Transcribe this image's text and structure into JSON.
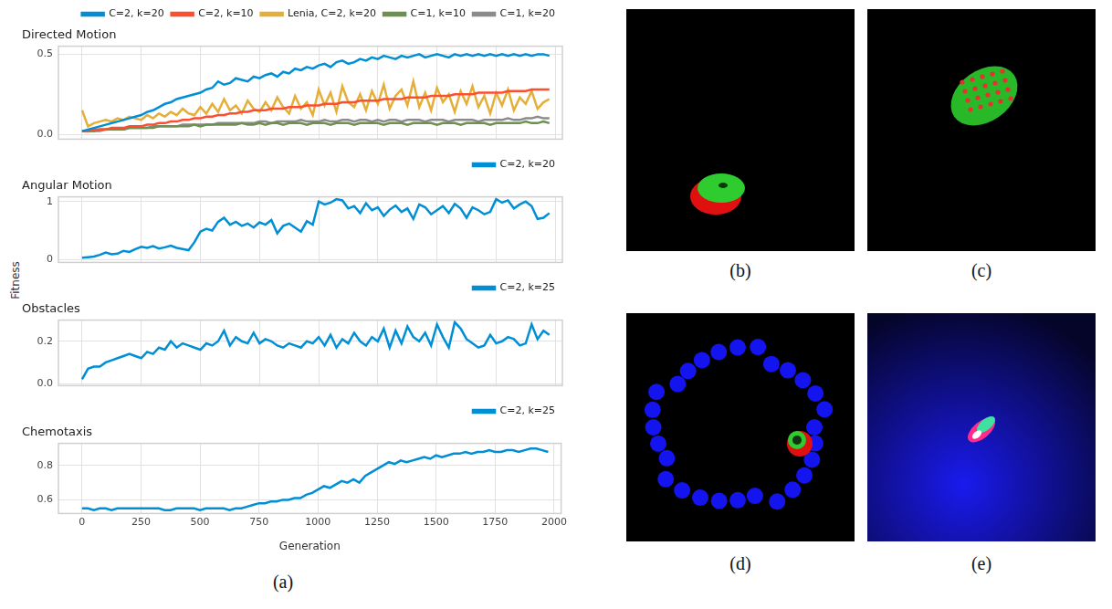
{
  "y_label": "Fitness",
  "panel_label": "(a)",
  "images": [
    "(b)",
    "(c)",
    "(d)",
    "(e)"
  ],
  "chart_data": [
    {
      "type": "line",
      "title": "Directed Motion",
      "x": [
        0,
        25,
        50,
        75,
        100,
        125,
        150,
        175,
        200,
        225,
        250,
        275,
        300,
        325,
        350,
        375,
        400,
        425,
        450,
        475,
        500,
        525,
        550,
        575,
        600,
        625,
        650,
        675,
        700,
        725,
        750,
        775,
        800,
        825,
        850,
        875,
        900,
        925,
        950,
        975,
        1000,
        1025,
        1050,
        1075,
        1100,
        1125,
        1150,
        1175,
        1200,
        1225,
        1250,
        1275,
        1300,
        1325,
        1350,
        1375,
        1400,
        1425,
        1450,
        1475,
        1500,
        1525,
        1550,
        1575,
        1600,
        1625,
        1650,
        1675,
        1700,
        1725,
        1750,
        1775,
        1800,
        1825,
        1850,
        1875,
        1900,
        1925,
        1950,
        1975
      ],
      "series": [
        {
          "name": "C=2, k=20",
          "color": "#008fd5",
          "values": [
            0.02,
            0.03,
            0.04,
            0.05,
            0.06,
            0.07,
            0.08,
            0.09,
            0.1,
            0.11,
            0.12,
            0.14,
            0.15,
            0.17,
            0.19,
            0.2,
            0.22,
            0.23,
            0.24,
            0.25,
            0.26,
            0.28,
            0.29,
            0.33,
            0.31,
            0.32,
            0.35,
            0.34,
            0.33,
            0.36,
            0.35,
            0.37,
            0.38,
            0.36,
            0.39,
            0.38,
            0.41,
            0.4,
            0.42,
            0.41,
            0.43,
            0.44,
            0.42,
            0.45,
            0.46,
            0.44,
            0.45,
            0.47,
            0.46,
            0.48,
            0.47,
            0.49,
            0.48,
            0.47,
            0.49,
            0.48,
            0.49,
            0.5,
            0.48,
            0.49,
            0.5,
            0.49,
            0.48,
            0.5,
            0.49,
            0.5,
            0.49,
            0.5,
            0.49,
            0.5,
            0.49,
            0.5,
            0.49,
            0.5,
            0.49,
            0.5,
            0.49,
            0.5,
            0.5,
            0.49
          ]
        },
        {
          "name": "C=2, k=10",
          "color": "#fc4f30",
          "values": [
            0.02,
            0.02,
            0.03,
            0.03,
            0.03,
            0.04,
            0.04,
            0.04,
            0.05,
            0.05,
            0.05,
            0.06,
            0.06,
            0.07,
            0.07,
            0.08,
            0.08,
            0.09,
            0.09,
            0.1,
            0.1,
            0.11,
            0.11,
            0.12,
            0.12,
            0.13,
            0.13,
            0.14,
            0.14,
            0.15,
            0.15,
            0.15,
            0.16,
            0.16,
            0.16,
            0.17,
            0.17,
            0.17,
            0.18,
            0.18,
            0.18,
            0.19,
            0.19,
            0.19,
            0.2,
            0.2,
            0.2,
            0.21,
            0.21,
            0.21,
            0.21,
            0.22,
            0.22,
            0.22,
            0.22,
            0.23,
            0.23,
            0.23,
            0.23,
            0.24,
            0.24,
            0.24,
            0.24,
            0.25,
            0.25,
            0.25,
            0.25,
            0.26,
            0.26,
            0.26,
            0.26,
            0.26,
            0.27,
            0.27,
            0.27,
            0.27,
            0.28,
            0.28,
            0.28,
            0.28
          ]
        },
        {
          "name": "Lenia, C=2, k=20",
          "color": "#e5ae38",
          "values": [
            0.15,
            0.05,
            0.07,
            0.08,
            0.09,
            0.08,
            0.1,
            0.09,
            0.11,
            0.1,
            0.09,
            0.12,
            0.1,
            0.13,
            0.11,
            0.14,
            0.12,
            0.16,
            0.13,
            0.12,
            0.17,
            0.13,
            0.19,
            0.14,
            0.22,
            0.15,
            0.18,
            0.13,
            0.21,
            0.16,
            0.14,
            0.2,
            0.15,
            0.23,
            0.17,
            0.13,
            0.24,
            0.16,
            0.2,
            0.12,
            0.28,
            0.18,
            0.26,
            0.14,
            0.3,
            0.2,
            0.17,
            0.25,
            0.15,
            0.27,
            0.19,
            0.31,
            0.16,
            0.24,
            0.28,
            0.18,
            0.33,
            0.17,
            0.26,
            0.15,
            0.29,
            0.2,
            0.25,
            0.14,
            0.27,
            0.19,
            0.3,
            0.17,
            0.24,
            0.13,
            0.26,
            0.18,
            0.28,
            0.15,
            0.23,
            0.19,
            0.27,
            0.16,
            0.2,
            0.22
          ]
        },
        {
          "name": "C=1, k=10",
          "color": "#6d904f",
          "values": [
            0.02,
            0.02,
            0.02,
            0.03,
            0.03,
            0.03,
            0.03,
            0.03,
            0.04,
            0.04,
            0.04,
            0.04,
            0.04,
            0.05,
            0.05,
            0.05,
            0.05,
            0.05,
            0.05,
            0.06,
            0.05,
            0.06,
            0.06,
            0.06,
            0.06,
            0.06,
            0.06,
            0.07,
            0.06,
            0.06,
            0.07,
            0.06,
            0.07,
            0.07,
            0.06,
            0.07,
            0.07,
            0.07,
            0.06,
            0.07,
            0.07,
            0.07,
            0.06,
            0.07,
            0.07,
            0.07,
            0.06,
            0.07,
            0.07,
            0.07,
            0.07,
            0.06,
            0.07,
            0.07,
            0.07,
            0.06,
            0.07,
            0.07,
            0.07,
            0.07,
            0.06,
            0.07,
            0.07,
            0.07,
            0.06,
            0.07,
            0.07,
            0.07,
            0.07,
            0.06,
            0.07,
            0.07,
            0.07,
            0.07,
            0.07,
            0.08,
            0.07,
            0.07,
            0.08,
            0.07
          ]
        },
        {
          "name": "C=1, k=20",
          "color": "#8b8b8b",
          "values": [
            0.02,
            0.02,
            0.02,
            0.02,
            0.03,
            0.03,
            0.03,
            0.03,
            0.04,
            0.04,
            0.04,
            0.04,
            0.05,
            0.05,
            0.05,
            0.05,
            0.05,
            0.06,
            0.06,
            0.06,
            0.06,
            0.06,
            0.06,
            0.07,
            0.07,
            0.07,
            0.07,
            0.07,
            0.07,
            0.07,
            0.08,
            0.08,
            0.07,
            0.08,
            0.08,
            0.08,
            0.08,
            0.09,
            0.08,
            0.08,
            0.08,
            0.09,
            0.08,
            0.08,
            0.09,
            0.09,
            0.08,
            0.09,
            0.09,
            0.08,
            0.09,
            0.08,
            0.09,
            0.09,
            0.08,
            0.09,
            0.09,
            0.09,
            0.08,
            0.09,
            0.09,
            0.09,
            0.08,
            0.09,
            0.09,
            0.09,
            0.09,
            0.08,
            0.09,
            0.09,
            0.09,
            0.09,
            0.1,
            0.09,
            0.09,
            0.1,
            0.1,
            0.11,
            0.1,
            0.1
          ]
        }
      ],
      "xlim": [
        -100,
        2030
      ],
      "xticks": [
        0,
        250,
        500,
        750,
        1000,
        1250,
        1500,
        1750,
        2000
      ],
      "ylim": [
        -0.03,
        0.55
      ],
      "yticks": [
        {
          "value": 0,
          "label": "0.0"
        },
        0.5
      ],
      "grid": true,
      "legend": "top right",
      "tick_labels": "y"
    },
    {
      "type": "line",
      "title": "Angular Motion",
      "x": [
        0,
        25,
        50,
        75,
        100,
        125,
        150,
        175,
        200,
        225,
        250,
        275,
        300,
        325,
        350,
        375,
        400,
        425,
        450,
        475,
        500,
        525,
        550,
        575,
        600,
        625,
        650,
        675,
        700,
        725,
        750,
        775,
        800,
        825,
        850,
        875,
        900,
        925,
        950,
        975,
        1000,
        1025,
        1050,
        1075,
        1100,
        1125,
        1150,
        1175,
        1200,
        1225,
        1250,
        1275,
        1300,
        1325,
        1350,
        1375,
        1400,
        1425,
        1450,
        1475,
        1500,
        1525,
        1550,
        1575,
        1600,
        1625,
        1650,
        1675,
        1700,
        1725,
        1750,
        1775,
        1800,
        1825,
        1850,
        1875,
        1900,
        1925,
        1950,
        1975
      ],
      "series": [
        {
          "name": "C=2, k=20",
          "color": "#008fd5",
          "values": [
            0.03,
            0.04,
            0.05,
            0.08,
            0.12,
            0.09,
            0.1,
            0.15,
            0.13,
            0.18,
            0.22,
            0.2,
            0.23,
            0.19,
            0.21,
            0.24,
            0.2,
            0.18,
            0.16,
            0.3,
            0.48,
            0.53,
            0.5,
            0.65,
            0.72,
            0.6,
            0.65,
            0.58,
            0.62,
            0.55,
            0.64,
            0.6,
            0.68,
            0.45,
            0.58,
            0.62,
            0.55,
            0.48,
            0.66,
            0.6,
            1.0,
            0.95,
            0.98,
            1.04,
            1.02,
            0.88,
            0.92,
            0.8,
            0.97,
            0.85,
            0.9,
            0.75,
            0.86,
            0.93,
            0.82,
            0.88,
            0.7,
            0.95,
            0.9,
            0.78,
            0.85,
            0.92,
            0.8,
            0.96,
            0.88,
            0.72,
            0.9,
            0.85,
            0.78,
            0.82,
            1.04,
            0.98,
            1.02,
            0.88,
            0.95,
            1.0,
            0.92,
            0.7,
            0.72,
            0.8
          ]
        }
      ],
      "xlim": [
        -100,
        2030
      ],
      "xticks": [
        0,
        250,
        500,
        750,
        1000,
        1250,
        1500,
        1750,
        2000
      ],
      "ylim": [
        -0.05,
        1.08
      ],
      "yticks": [
        0,
        1
      ],
      "grid": true,
      "legend": "top right",
      "tick_labels": "y"
    },
    {
      "type": "line",
      "title": "Obstacles",
      "x": [
        0,
        25,
        50,
        75,
        100,
        125,
        150,
        175,
        200,
        225,
        250,
        275,
        300,
        325,
        350,
        375,
        400,
        425,
        450,
        475,
        500,
        525,
        550,
        575,
        600,
        625,
        650,
        675,
        700,
        725,
        750,
        775,
        800,
        825,
        850,
        875,
        900,
        925,
        950,
        975,
        1000,
        1025,
        1050,
        1075,
        1100,
        1125,
        1150,
        1175,
        1200,
        1225,
        1250,
        1275,
        1300,
        1325,
        1350,
        1375,
        1400,
        1425,
        1450,
        1475,
        1500,
        1525,
        1550,
        1575,
        1600,
        1625,
        1650,
        1675,
        1700,
        1725,
        1750,
        1775,
        1800,
        1825,
        1850,
        1875,
        1900,
        1925,
        1950,
        1975
      ],
      "series": [
        {
          "name": "C=2, k=25",
          "color": "#008fd5",
          "values": [
            0.02,
            0.07,
            0.08,
            0.08,
            0.1,
            0.11,
            0.12,
            0.13,
            0.14,
            0.13,
            0.12,
            0.15,
            0.14,
            0.17,
            0.16,
            0.2,
            0.17,
            0.19,
            0.18,
            0.17,
            0.16,
            0.19,
            0.18,
            0.2,
            0.25,
            0.18,
            0.22,
            0.2,
            0.19,
            0.24,
            0.19,
            0.21,
            0.2,
            0.18,
            0.17,
            0.19,
            0.18,
            0.17,
            0.2,
            0.19,
            0.22,
            0.18,
            0.23,
            0.17,
            0.21,
            0.19,
            0.24,
            0.2,
            0.18,
            0.22,
            0.2,
            0.26,
            0.17,
            0.25,
            0.19,
            0.27,
            0.22,
            0.2,
            0.24,
            0.18,
            0.28,
            0.22,
            0.17,
            0.29,
            0.26,
            0.21,
            0.19,
            0.17,
            0.18,
            0.23,
            0.19,
            0.2,
            0.22,
            0.21,
            0.18,
            0.19,
            0.28,
            0.21,
            0.25,
            0.23
          ]
        }
      ],
      "xlim": [
        -100,
        2030
      ],
      "xticks": [
        0,
        250,
        500,
        750,
        1000,
        1250,
        1500,
        1750,
        2000
      ],
      "ylim": [
        -0.01,
        0.3
      ],
      "yticks": [
        {
          "value": 0,
          "label": "0.0"
        },
        0.2
      ],
      "grid": true,
      "legend": "top right",
      "tick_labels": "y"
    },
    {
      "type": "line",
      "title": "Chemotaxis",
      "x_label": "Generation",
      "x": [
        0,
        25,
        50,
        75,
        100,
        125,
        150,
        175,
        200,
        225,
        250,
        275,
        300,
        325,
        350,
        375,
        400,
        425,
        450,
        475,
        500,
        525,
        550,
        575,
        600,
        625,
        650,
        675,
        700,
        725,
        750,
        775,
        800,
        825,
        850,
        875,
        900,
        925,
        950,
        975,
        1000,
        1025,
        1050,
        1075,
        1100,
        1125,
        1150,
        1175,
        1200,
        1225,
        1250,
        1275,
        1300,
        1325,
        1350,
        1375,
        1400,
        1425,
        1450,
        1475,
        1500,
        1525,
        1550,
        1575,
        1600,
        1625,
        1650,
        1675,
        1700,
        1725,
        1750,
        1775,
        1800,
        1825,
        1850,
        1875,
        1900,
        1925,
        1950,
        1975
      ],
      "series": [
        {
          "name": "C=2, k=25",
          "color": "#008fd5",
          "values": [
            0.55,
            0.55,
            0.54,
            0.55,
            0.55,
            0.54,
            0.55,
            0.55,
            0.55,
            0.55,
            0.55,
            0.55,
            0.55,
            0.55,
            0.54,
            0.54,
            0.55,
            0.55,
            0.55,
            0.55,
            0.54,
            0.55,
            0.55,
            0.55,
            0.55,
            0.54,
            0.55,
            0.55,
            0.56,
            0.57,
            0.58,
            0.58,
            0.59,
            0.59,
            0.6,
            0.6,
            0.61,
            0.61,
            0.63,
            0.64,
            0.66,
            0.68,
            0.67,
            0.69,
            0.71,
            0.7,
            0.72,
            0.7,
            0.74,
            0.76,
            0.78,
            0.8,
            0.82,
            0.81,
            0.83,
            0.82,
            0.83,
            0.84,
            0.85,
            0.84,
            0.86,
            0.85,
            0.86,
            0.87,
            0.87,
            0.88,
            0.87,
            0.88,
            0.88,
            0.89,
            0.88,
            0.88,
            0.89,
            0.89,
            0.88,
            0.89,
            0.9,
            0.9,
            0.89,
            0.88
          ]
        }
      ],
      "xlim": [
        -100,
        2030
      ],
      "xticks": [
        0,
        250,
        500,
        750,
        1000,
        1250,
        1500,
        1750,
        2000
      ],
      "ylim": [
        0.52,
        0.93
      ],
      "yticks": [
        0.6,
        0.8
      ],
      "grid": true,
      "legend": "top right"
    }
  ]
}
